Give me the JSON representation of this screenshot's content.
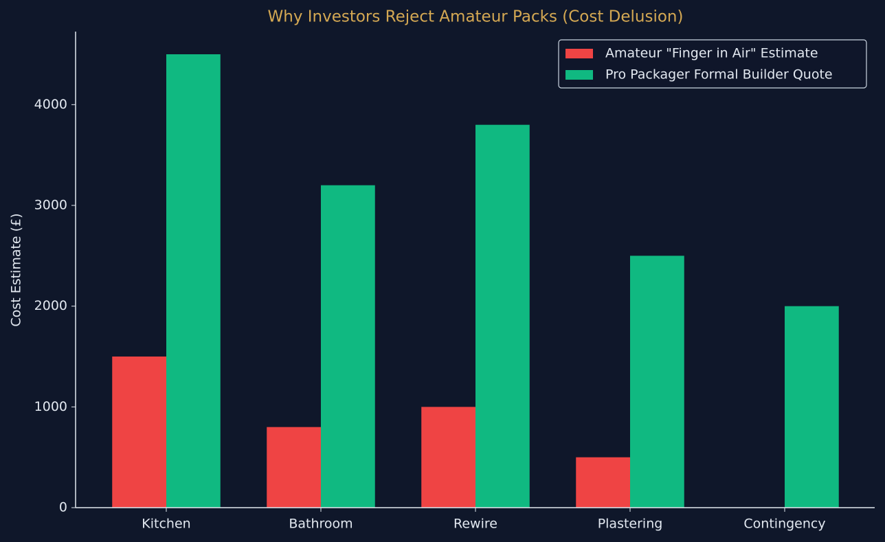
{
  "chart_data": {
    "type": "bar",
    "title": "Why Investors Reject Amateur Packs (Cost Delusion)",
    "ylabel": "Cost Estimate (£)",
    "categories": [
      "Kitchen",
      "Bathroom",
      "Rewire",
      "Plastering",
      "Contingency"
    ],
    "series": [
      {
        "name": "Amateur \"Finger in Air\" Estimate",
        "color": "#ef4444",
        "values": [
          1500,
          800,
          1000,
          500,
          0
        ]
      },
      {
        "name": "Pro Packager Formal Builder Quote",
        "color": "#10b981",
        "values": [
          4500,
          3200,
          3800,
          2500,
          2000
        ]
      }
    ],
    "ylim": [
      0,
      4725
    ],
    "yticks": [
      0,
      1000,
      2000,
      3000,
      4000
    ],
    "grid": false,
    "legend": "upper right"
  }
}
